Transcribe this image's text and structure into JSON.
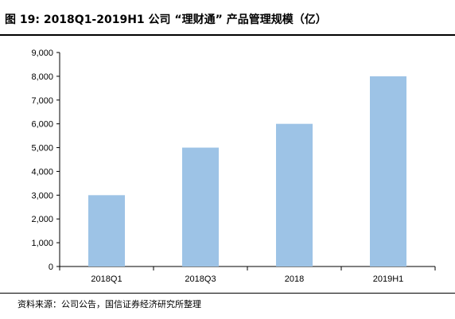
{
  "header": {
    "title": "图 19:  2018Q1-2019H1 公司 “理财通” 产品管理规模（亿）"
  },
  "footer": {
    "source": "资料来源：公司公告，国信证券经济研究所整理"
  },
  "chart_data": {
    "type": "bar",
    "categories": [
      "2018Q1",
      "2018Q3",
      "2018",
      "2019H1"
    ],
    "values": [
      3000,
      5000,
      6000,
      8000
    ],
    "ylim": [
      0,
      9000
    ],
    "yticks": [
      0,
      1000,
      2000,
      3000,
      4000,
      5000,
      6000,
      7000,
      8000,
      9000
    ],
    "ytick_labels": [
      "0",
      "1,000",
      "2,000",
      "3,000",
      "4,000",
      "5,000",
      "6,000",
      "7,000",
      "8,000",
      "9,000"
    ],
    "bar_color": "#9dc3e6",
    "grid": false,
    "legend": "none"
  }
}
